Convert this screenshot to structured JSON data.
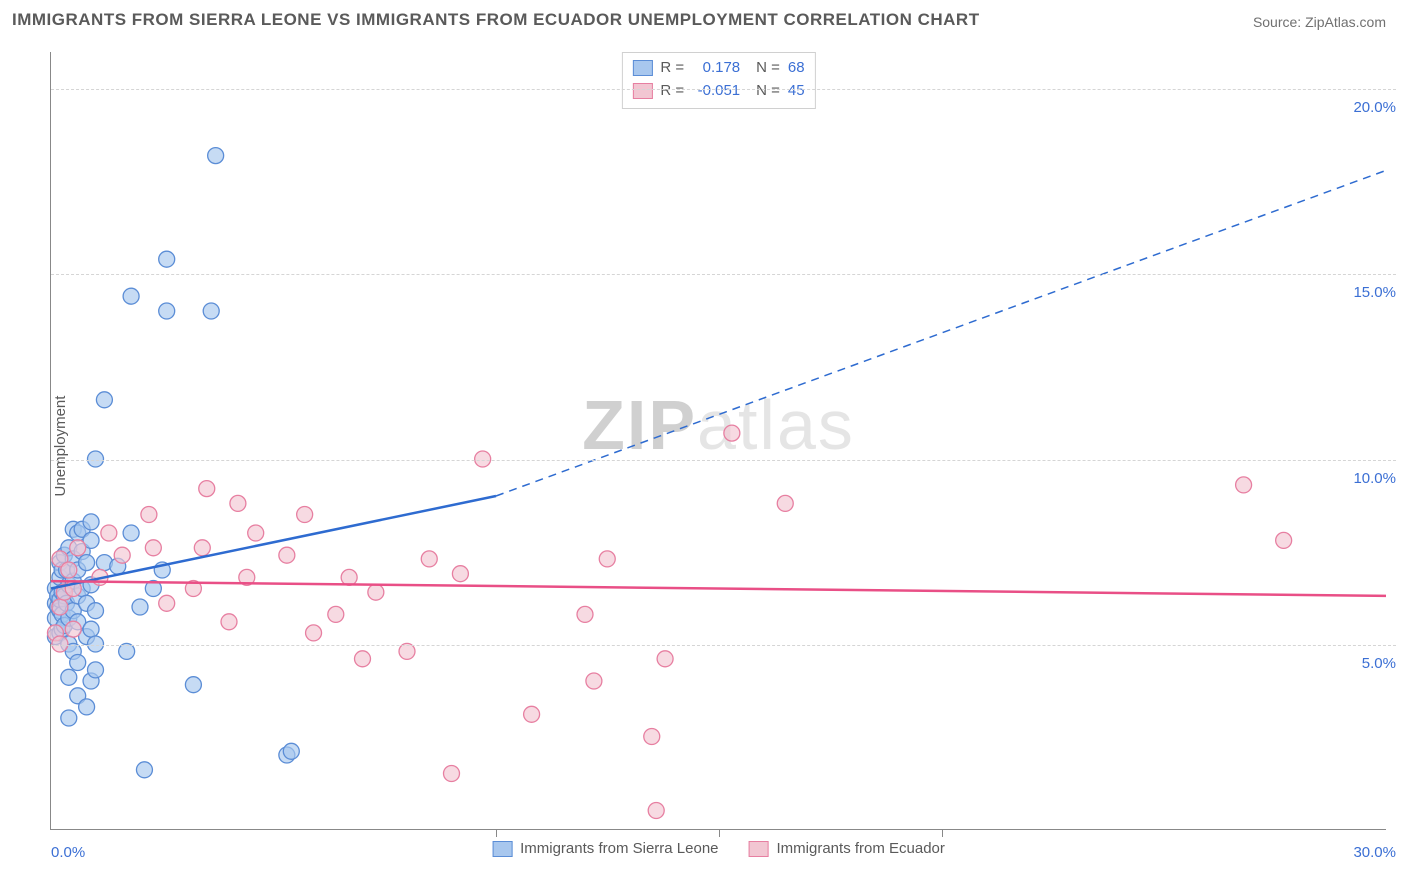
{
  "title": "IMMIGRANTS FROM SIERRA LEONE VS IMMIGRANTS FROM ECUADOR UNEMPLOYMENT CORRELATION CHART",
  "source": "Source: ZipAtlas.com",
  "ylabel": "Unemployment",
  "watermark": {
    "part1": "ZIP",
    "part2": "atlas"
  },
  "chart": {
    "type": "scatter",
    "background_color": "#ffffff",
    "grid_color": "#d5d5d5",
    "axis_color": "#888888",
    "tick_label_color": "#3b6fd4",
    "xlim": [
      0,
      30
    ],
    "ylim": [
      0,
      21
    ],
    "xtick_start_label": "0.0%",
    "xtick_end_label": "30.0%",
    "ytick_labels": [
      "5.0%",
      "10.0%",
      "15.0%",
      "20.0%"
    ],
    "ytick_values": [
      5,
      10,
      15,
      20
    ],
    "x_vticks": [
      10,
      15,
      20
    ],
    "series": [
      {
        "name": "Immigrants from Sierra Leone",
        "fill": "#a8c7ee",
        "stroke": "#5b8dd6",
        "line_color": "#2e6bd0",
        "r_value": "0.178",
        "n_value": "68",
        "regression": {
          "x1": 0,
          "y1": 6.5,
          "x2_solid": 10,
          "y2_solid": 9.0,
          "x2_dash": 30,
          "y2_dash": 17.8
        },
        "points": [
          [
            0.1,
            5.2
          ],
          [
            0.1,
            5.7
          ],
          [
            0.1,
            6.1
          ],
          [
            0.1,
            6.5
          ],
          [
            0.15,
            6.0
          ],
          [
            0.15,
            6.3
          ],
          [
            0.2,
            5.3
          ],
          [
            0.2,
            5.9
          ],
          [
            0.2,
            6.2
          ],
          [
            0.2,
            6.8
          ],
          [
            0.2,
            7.2
          ],
          [
            0.25,
            5.4
          ],
          [
            0.25,
            5.8
          ],
          [
            0.25,
            6.4
          ],
          [
            0.25,
            7.0
          ],
          [
            0.3,
            5.5
          ],
          [
            0.3,
            6.3
          ],
          [
            0.3,
            7.4
          ],
          [
            0.35,
            6.1
          ],
          [
            0.35,
            7.0
          ],
          [
            0.4,
            3.0
          ],
          [
            0.4,
            4.1
          ],
          [
            0.4,
            5.0
          ],
          [
            0.4,
            5.7
          ],
          [
            0.4,
            6.6
          ],
          [
            0.4,
            7.6
          ],
          [
            0.5,
            4.8
          ],
          [
            0.5,
            5.9
          ],
          [
            0.5,
            6.7
          ],
          [
            0.5,
            7.3
          ],
          [
            0.5,
            8.1
          ],
          [
            0.6,
            3.6
          ],
          [
            0.6,
            4.5
          ],
          [
            0.6,
            5.6
          ],
          [
            0.6,
            6.3
          ],
          [
            0.6,
            7.0
          ],
          [
            0.6,
            8.0
          ],
          [
            0.7,
            6.5
          ],
          [
            0.7,
            7.5
          ],
          [
            0.7,
            8.1
          ],
          [
            0.8,
            3.3
          ],
          [
            0.8,
            5.2
          ],
          [
            0.8,
            6.1
          ],
          [
            0.8,
            7.2
          ],
          [
            0.9,
            4.0
          ],
          [
            0.9,
            5.4
          ],
          [
            0.9,
            6.6
          ],
          [
            0.9,
            7.8
          ],
          [
            0.9,
            8.3
          ],
          [
            1.0,
            4.3
          ],
          [
            1.0,
            5.0
          ],
          [
            1.0,
            5.9
          ],
          [
            1.0,
            10.0
          ],
          [
            1.2,
            7.2
          ],
          [
            1.2,
            11.6
          ],
          [
            1.5,
            7.1
          ],
          [
            1.7,
            4.8
          ],
          [
            1.8,
            8.0
          ],
          [
            1.8,
            14.4
          ],
          [
            2.0,
            6.0
          ],
          [
            2.1,
            1.6
          ],
          [
            2.3,
            6.5
          ],
          [
            2.5,
            7.0
          ],
          [
            2.6,
            14.0
          ],
          [
            2.6,
            15.4
          ],
          [
            3.2,
            3.9
          ],
          [
            3.6,
            14.0
          ],
          [
            3.7,
            18.2
          ],
          [
            5.3,
            2.0
          ],
          [
            5.4,
            2.1
          ]
        ]
      },
      {
        "name": "Immigrants from Ecuador",
        "fill": "#f2c6d2",
        "stroke": "#e77fa1",
        "line_color": "#e94f86",
        "r_value": "-0.051",
        "n_value": "45",
        "regression": {
          "x1": 0,
          "y1": 6.7,
          "x2_solid": 30,
          "y2_solid": 6.3,
          "x2_dash": 30,
          "y2_dash": 6.3
        },
        "points": [
          [
            0.1,
            5.3
          ],
          [
            0.2,
            5.0
          ],
          [
            0.2,
            6.0
          ],
          [
            0.2,
            7.3
          ],
          [
            0.3,
            6.4
          ],
          [
            0.4,
            7.0
          ],
          [
            0.5,
            5.4
          ],
          [
            0.5,
            6.5
          ],
          [
            0.6,
            7.6
          ],
          [
            1.1,
            6.8
          ],
          [
            1.3,
            8.0
          ],
          [
            1.6,
            7.4
          ],
          [
            2.2,
            8.5
          ],
          [
            2.3,
            7.6
          ],
          [
            2.6,
            6.1
          ],
          [
            3.2,
            6.5
          ],
          [
            3.4,
            7.6
          ],
          [
            3.5,
            9.2
          ],
          [
            4.0,
            5.6
          ],
          [
            4.2,
            8.8
          ],
          [
            4.4,
            6.8
          ],
          [
            4.6,
            8.0
          ],
          [
            5.3,
            7.4
          ],
          [
            5.7,
            8.5
          ],
          [
            5.9,
            5.3
          ],
          [
            6.4,
            5.8
          ],
          [
            6.7,
            6.8
          ],
          [
            7.0,
            4.6
          ],
          [
            7.3,
            6.4
          ],
          [
            8.0,
            4.8
          ],
          [
            8.5,
            7.3
          ],
          [
            9.0,
            1.5
          ],
          [
            9.2,
            6.9
          ],
          [
            9.7,
            10.0
          ],
          [
            10.8,
            3.1
          ],
          [
            12.0,
            5.8
          ],
          [
            12.2,
            4.0
          ],
          [
            12.5,
            7.3
          ],
          [
            13.5,
            2.5
          ],
          [
            13.6,
            0.5
          ],
          [
            13.8,
            4.6
          ],
          [
            15.3,
            10.7
          ],
          [
            16.5,
            8.8
          ],
          [
            26.8,
            9.3
          ],
          [
            27.7,
            7.8
          ]
        ]
      }
    ]
  },
  "legend_top": {
    "r_label": "R =",
    "n_label": "N ="
  },
  "legend_bottom": {
    "series1_label": "Immigrants from Sierra Leone",
    "series2_label": "Immigrants from Ecuador"
  }
}
